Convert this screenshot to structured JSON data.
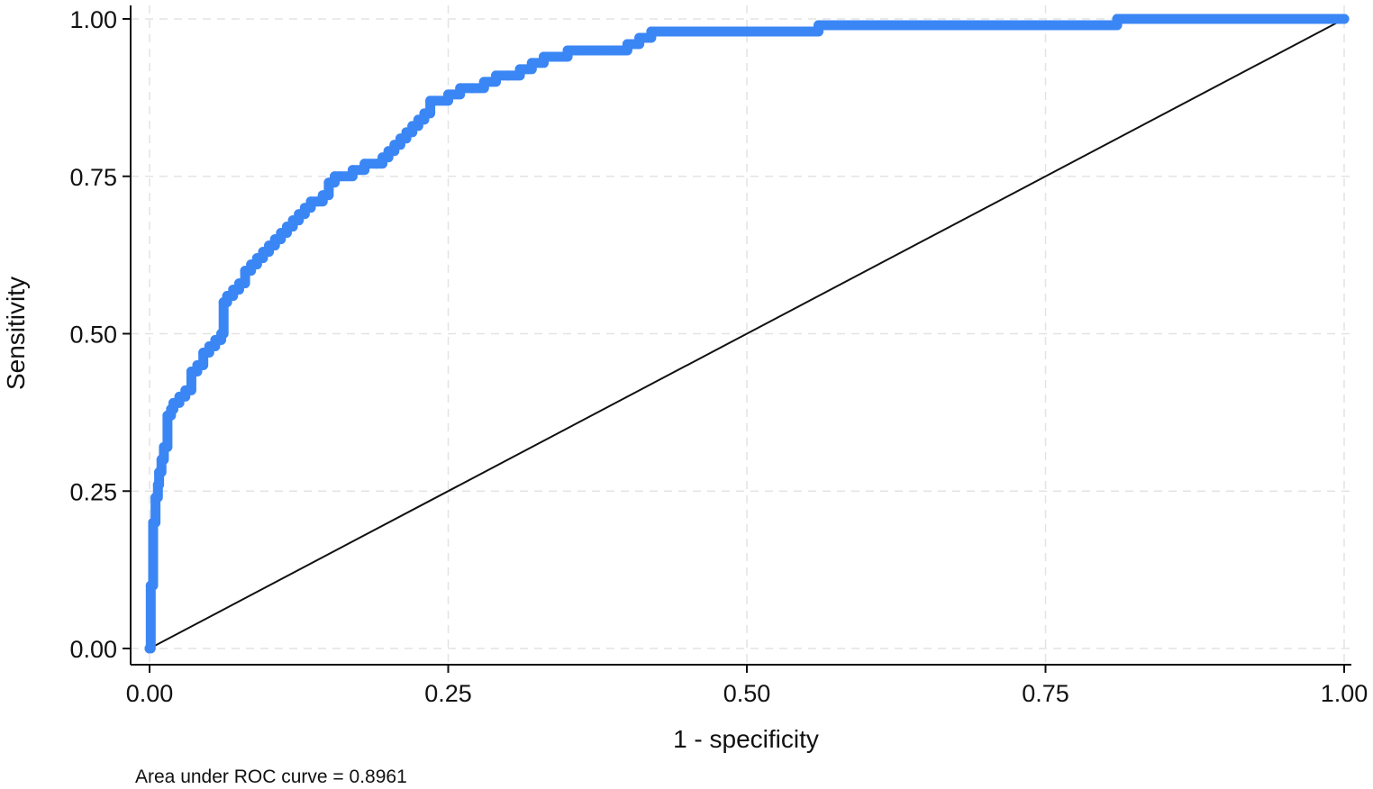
{
  "chart_data": {
    "type": "line",
    "title": "",
    "xlabel": "1 - specificity",
    "ylabel": "Sensitivity",
    "xlim": [
      0,
      1
    ],
    "ylim": [
      0,
      1
    ],
    "x_ticks": [
      "0.00",
      "0.25",
      "0.50",
      "0.75",
      "1.00"
    ],
    "y_ticks": [
      "0.00",
      "0.25",
      "0.50",
      "0.75",
      "1.00"
    ],
    "grid": true,
    "legend": "none",
    "note": "Area under ROC curve = 0.8961",
    "colors": {
      "roc": "#3b86f5",
      "reference": "#111111",
      "grid": "#e3e3e3"
    },
    "series": [
      {
        "x": [
          0.0,
          0.001,
          0.003,
          0.005,
          0.007,
          0.008,
          0.01,
          0.012,
          0.015,
          0.018,
          0.02,
          0.025,
          0.03,
          0.035,
          0.04,
          0.045,
          0.05,
          0.055,
          0.06,
          0.062,
          0.065,
          0.07,
          0.075,
          0.08,
          0.085,
          0.09,
          0.095,
          0.1,
          0.105,
          0.11,
          0.115,
          0.12,
          0.125,
          0.13,
          0.135,
          0.14,
          0.145,
          0.15,
          0.155,
          0.16,
          0.17,
          0.18,
          0.19,
          0.195,
          0.2,
          0.205,
          0.21,
          0.215,
          0.22,
          0.225,
          0.23,
          0.235,
          0.25,
          0.26,
          0.27,
          0.28,
          0.29,
          0.3,
          0.31,
          0.32,
          0.33,
          0.34,
          0.35,
          0.36,
          0.38,
          0.4,
          0.41,
          0.42,
          0.44,
          0.5,
          0.55,
          0.56,
          0.6,
          0.7,
          0.8,
          0.81,
          0.82,
          0.9,
          1.0
        ],
        "y": [
          0.0,
          0.1,
          0.2,
          0.24,
          0.26,
          0.28,
          0.3,
          0.32,
          0.37,
          0.38,
          0.39,
          0.4,
          0.41,
          0.44,
          0.45,
          0.47,
          0.48,
          0.49,
          0.5,
          0.55,
          0.56,
          0.57,
          0.58,
          0.6,
          0.61,
          0.62,
          0.63,
          0.64,
          0.65,
          0.66,
          0.67,
          0.68,
          0.69,
          0.7,
          0.71,
          0.71,
          0.72,
          0.74,
          0.75,
          0.75,
          0.76,
          0.77,
          0.77,
          0.78,
          0.79,
          0.8,
          0.81,
          0.82,
          0.83,
          0.84,
          0.85,
          0.87,
          0.88,
          0.89,
          0.89,
          0.9,
          0.91,
          0.91,
          0.92,
          0.93,
          0.94,
          0.94,
          0.95,
          0.95,
          0.95,
          0.96,
          0.97,
          0.98,
          0.98,
          0.98,
          0.98,
          0.99,
          0.99,
          0.99,
          0.99,
          1.0,
          1.0,
          1.0,
          1.0
        ]
      },
      {
        "x": [
          0,
          1
        ],
        "y": [
          0,
          1
        ]
      }
    ]
  }
}
